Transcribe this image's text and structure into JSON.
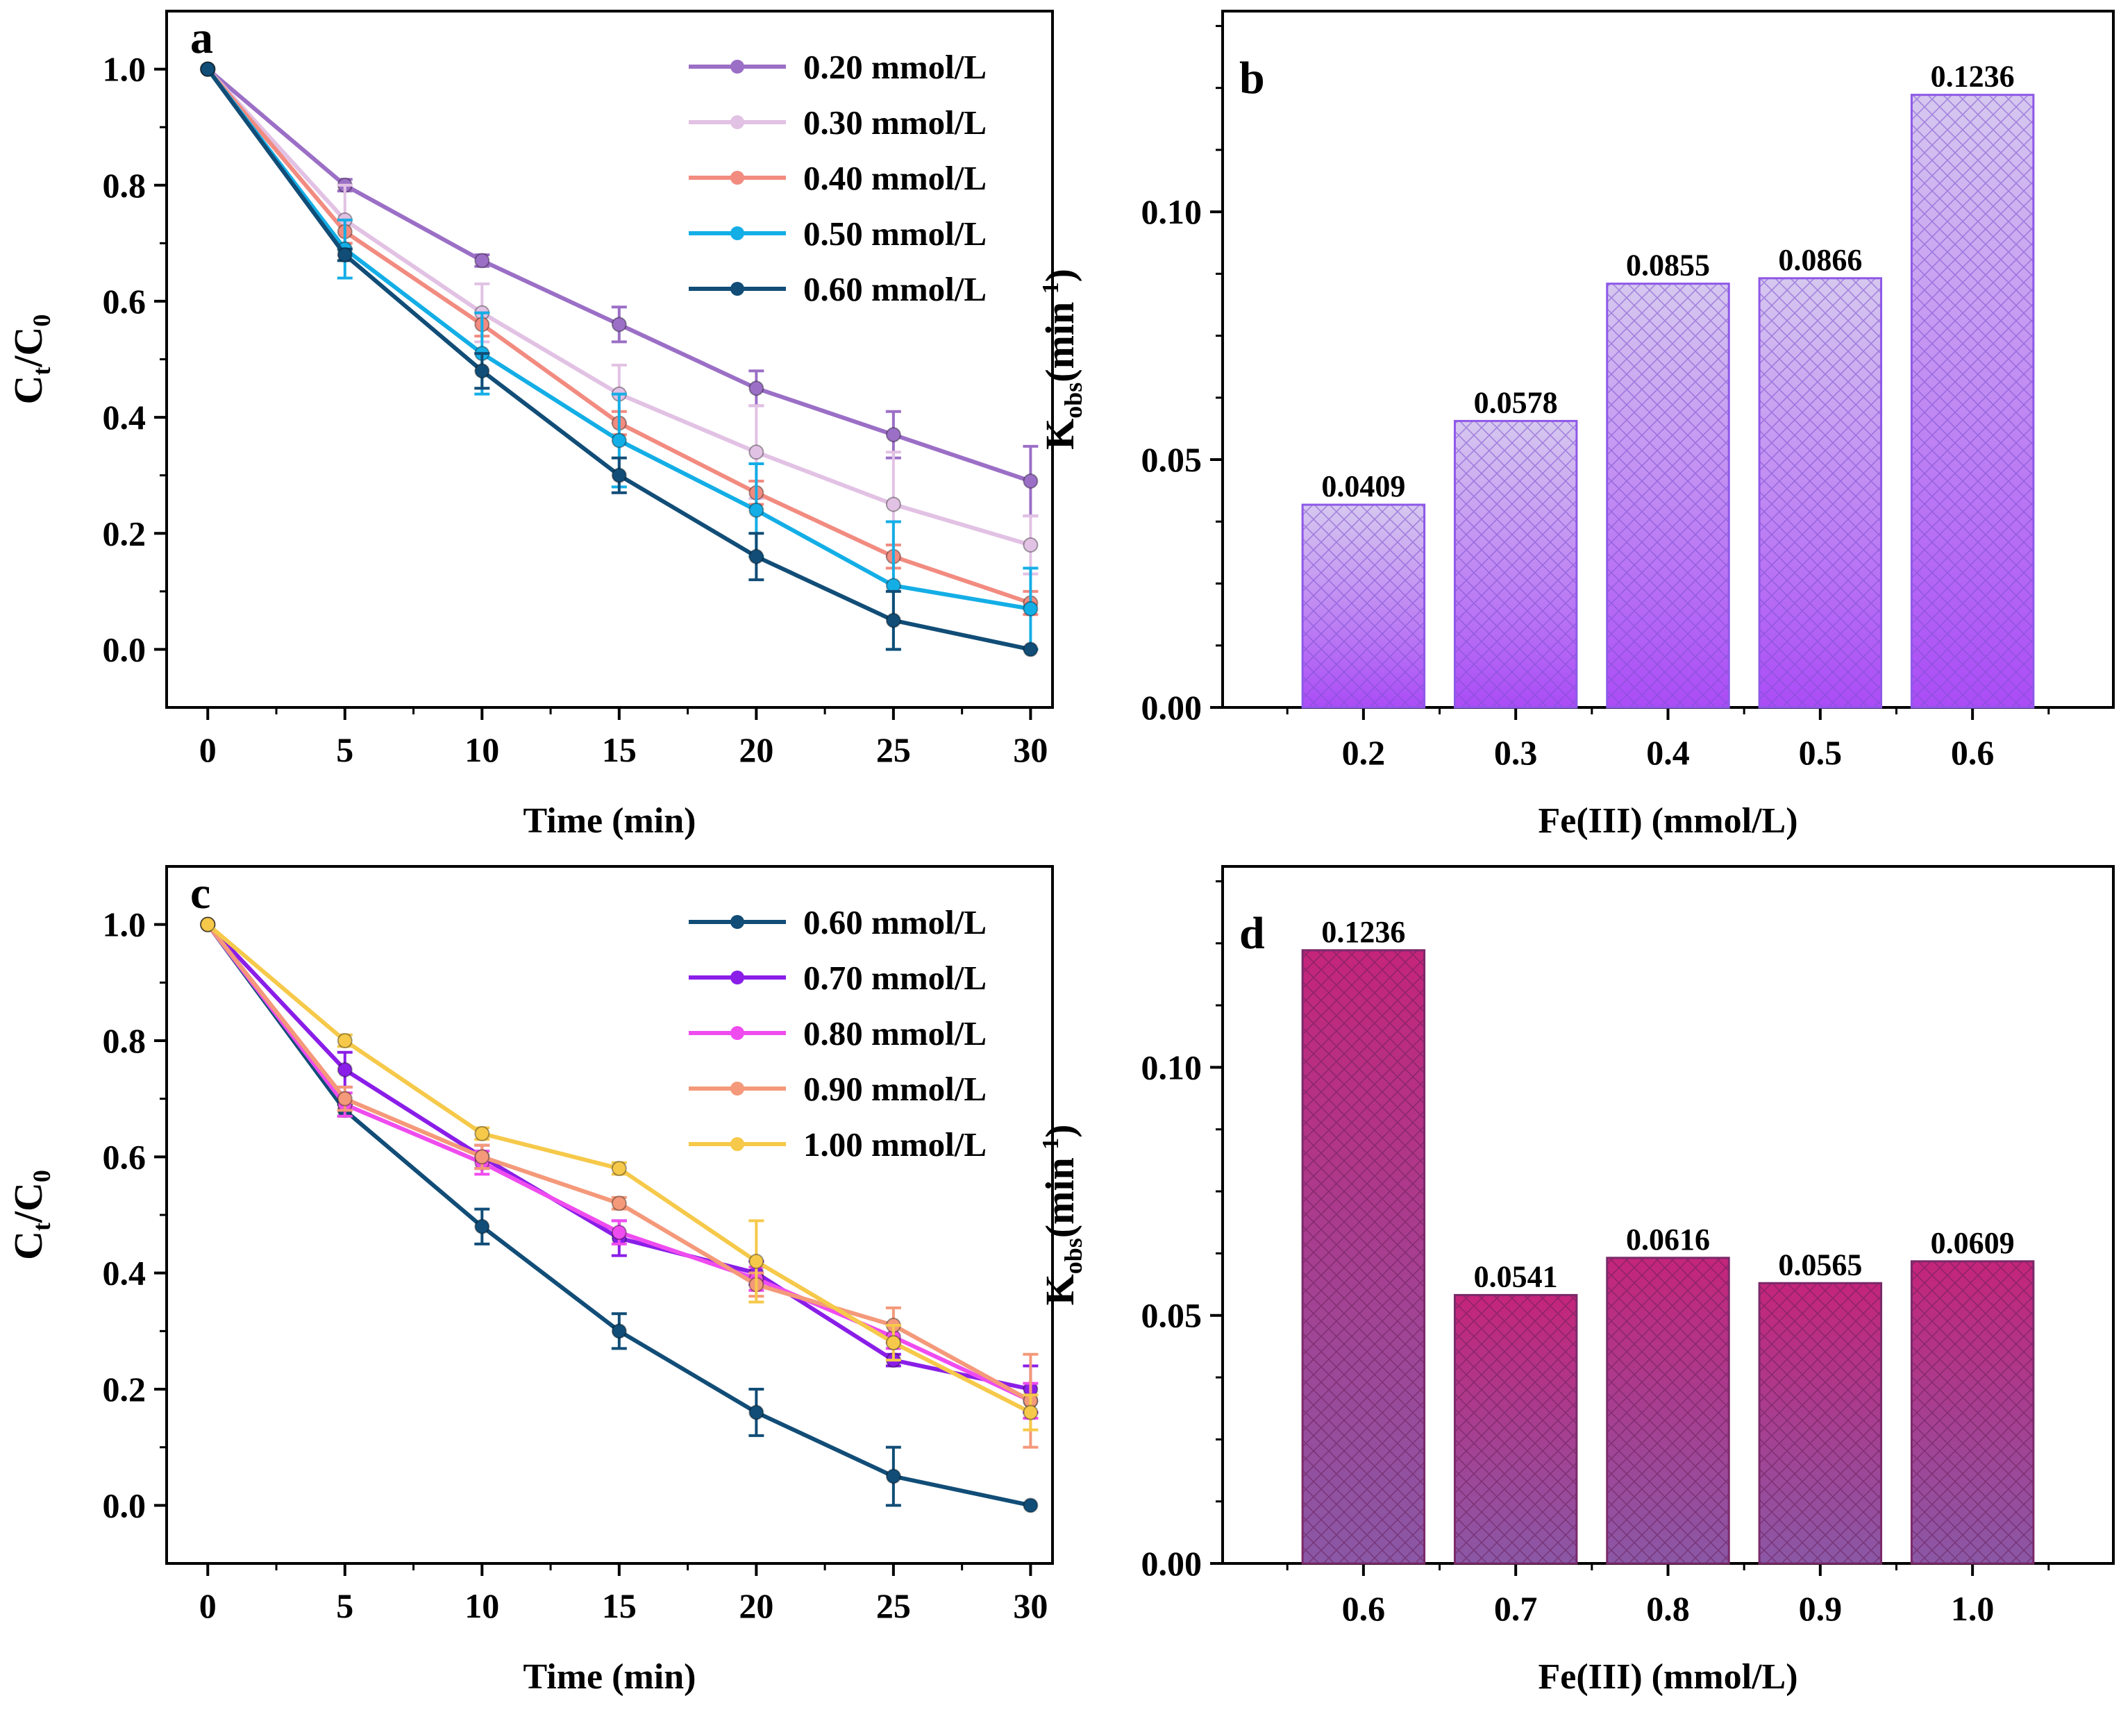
{
  "chart_data": [
    {
      "id": "a",
      "type": "line",
      "panel_label": "a",
      "xlabel": "Time (min)",
      "ylabel_main": "C",
      "ylabel_sub": "t",
      "ylabel_mid": "/C",
      "ylabel_sub2": "0",
      "xlim": [
        -1.5,
        30.8
      ],
      "ylim": [
        -0.1,
        1.1
      ],
      "xticks": [
        0,
        5,
        10,
        15,
        20,
        25,
        30
      ],
      "xtick_labels": [
        "0",
        "5",
        "10",
        "15",
        "20",
        "25",
        "30"
      ],
      "yticks": [
        0.0,
        0.2,
        0.4,
        0.6,
        0.8,
        1.0
      ],
      "ytick_labels": [
        "0.0",
        "0.2",
        "0.4",
        "0.6",
        "0.8",
        "1.0"
      ],
      "legend_position": "top-right",
      "x": [
        0,
        5,
        10,
        15,
        20,
        25,
        30
      ],
      "series": [
        {
          "name": "0.20 mmol/L",
          "color": "#9b6fc6",
          "values": [
            1.0,
            0.8,
            0.67,
            0.56,
            0.45,
            0.37,
            0.29
          ],
          "errors": [
            0,
            0.01,
            0.01,
            0.03,
            0.03,
            0.04,
            0.06
          ]
        },
        {
          "name": "0.30 mmol/L",
          "color": "#e2c2e4",
          "values": [
            1.0,
            0.74,
            0.58,
            0.44,
            0.34,
            0.25,
            0.18
          ],
          "errors": [
            0,
            0.06,
            0.05,
            0.05,
            0.08,
            0.09,
            0.05
          ]
        },
        {
          "name": "0.40 mmol/L",
          "color": "#f28b80",
          "values": [
            1.0,
            0.72,
            0.56,
            0.39,
            0.27,
            0.16,
            0.08
          ],
          "errors": [
            0,
            0.02,
            0.02,
            0.02,
            0.02,
            0.02,
            0.02
          ]
        },
        {
          "name": "0.50 mmol/L",
          "color": "#14aee6",
          "values": [
            1.0,
            0.69,
            0.51,
            0.36,
            0.24,
            0.11,
            0.07
          ],
          "errors": [
            0,
            0.05,
            0.07,
            0.08,
            0.08,
            0.11,
            0.07
          ]
        },
        {
          "name": "0.60 mmol/L",
          "color": "#114d77",
          "values": [
            1.0,
            0.68,
            0.48,
            0.3,
            0.16,
            0.05,
            0.0
          ],
          "errors": [
            0,
            0.01,
            0.03,
            0.03,
            0.04,
            0.05,
            0.0
          ]
        }
      ]
    },
    {
      "id": "b",
      "type": "bar",
      "panel_label": "b",
      "xlabel": "Fe(III) (mmol/L)",
      "ylabel_main": "K",
      "ylabel_sub": "obs",
      "ylabel_mid": "(min",
      "ylabel_sup": "-1",
      "ylabel_end": ")",
      "categories": [
        "0.2",
        "0.3",
        "0.4",
        "0.5",
        "0.6"
      ],
      "values": [
        0.0409,
        0.0578,
        0.0855,
        0.0866,
        0.1236
      ],
      "value_labels": [
        "0.0409",
        "0.0578",
        "0.0855",
        "0.0866",
        "0.1236"
      ],
      "ylim": [
        0,
        0.1405
      ],
      "yticks": [
        0.0,
        0.05,
        0.1
      ],
      "ytick_labels": [
        "0.00",
        "0.05",
        "0.10"
      ],
      "bar_color_top": "#d6c8ef",
      "bar_color_bottom": "#ab4cf6",
      "hatch_color": "#7a4fd0",
      "edge_color": "#8e58e8"
    },
    {
      "id": "c",
      "type": "line",
      "panel_label": "c",
      "xlabel": "Time (min)",
      "ylabel_main": "C",
      "ylabel_sub": "t",
      "ylabel_mid": "/C",
      "ylabel_sub2": "0",
      "xlim": [
        -1.5,
        30.8
      ],
      "ylim": [
        -0.1,
        1.1
      ],
      "xticks": [
        0,
        5,
        10,
        15,
        20,
        25,
        30
      ],
      "xtick_labels": [
        "0",
        "5",
        "10",
        "15",
        "20",
        "25",
        "30"
      ],
      "yticks": [
        0.0,
        0.2,
        0.4,
        0.6,
        0.8,
        1.0
      ],
      "ytick_labels": [
        "0.0",
        "0.2",
        "0.4",
        "0.6",
        "0.8",
        "1.0"
      ],
      "legend_position": "top-right",
      "x": [
        0,
        5,
        10,
        15,
        20,
        25,
        30
      ],
      "series": [
        {
          "name": "0.60 mmol/L",
          "color": "#114d77",
          "values": [
            1.0,
            0.68,
            0.48,
            0.3,
            0.16,
            0.05,
            0.0
          ],
          "errors": [
            0,
            0.01,
            0.03,
            0.03,
            0.04,
            0.05,
            0.0
          ]
        },
        {
          "name": "0.70 mmol/L",
          "color": "#8a1ee8",
          "values": [
            1.0,
            0.75,
            0.6,
            0.46,
            0.4,
            0.25,
            0.2
          ],
          "errors": [
            0,
            0.03,
            0.02,
            0.03,
            0.02,
            0.01,
            0.04
          ]
        },
        {
          "name": "0.80 mmol/L",
          "color": "#ef4cef",
          "values": [
            1.0,
            0.69,
            0.59,
            0.47,
            0.39,
            0.29,
            0.18
          ],
          "errors": [
            0,
            0.02,
            0.02,
            0.02,
            0.02,
            0.02,
            0.03
          ]
        },
        {
          "name": "0.90 mmol/L",
          "color": "#f4997a",
          "values": [
            1.0,
            0.7,
            0.6,
            0.52,
            0.38,
            0.31,
            0.18
          ],
          "errors": [
            0,
            0.02,
            0.02,
            0.01,
            0.02,
            0.03,
            0.08
          ]
        },
        {
          "name": "1.00 mmol/L",
          "color": "#f6c94a",
          "values": [
            1.0,
            0.8,
            0.64,
            0.58,
            0.42,
            0.28,
            0.16
          ],
          "errors": [
            0,
            0.01,
            0.01,
            0.01,
            0.07,
            0.03,
            0.03
          ]
        }
      ]
    },
    {
      "id": "d",
      "type": "bar",
      "panel_label": "d",
      "xlabel": "Fe(III) (mmol/L)",
      "ylabel_main": "K",
      "ylabel_sub": "obs",
      "ylabel_mid": "(min",
      "ylabel_sup": "-1",
      "ylabel_end": ")",
      "categories": [
        "0.6",
        "0.7",
        "0.8",
        "0.9",
        "1.0"
      ],
      "values": [
        0.1236,
        0.0541,
        0.0616,
        0.0565,
        0.0609
      ],
      "value_labels": [
        "0.1236",
        "0.0541",
        "0.0616",
        "0.0565",
        "0.0609"
      ],
      "ylim": [
        0,
        0.1405
      ],
      "yticks": [
        0.0,
        0.05,
        0.1
      ],
      "ytick_labels": [
        "0.00",
        "0.05",
        "0.10"
      ],
      "bar_color_top": "#c4257a",
      "bar_color_bottom": "#8a58a6",
      "hatch_color": "#6a1f5a",
      "edge_color": "#7a2a6a"
    }
  ]
}
